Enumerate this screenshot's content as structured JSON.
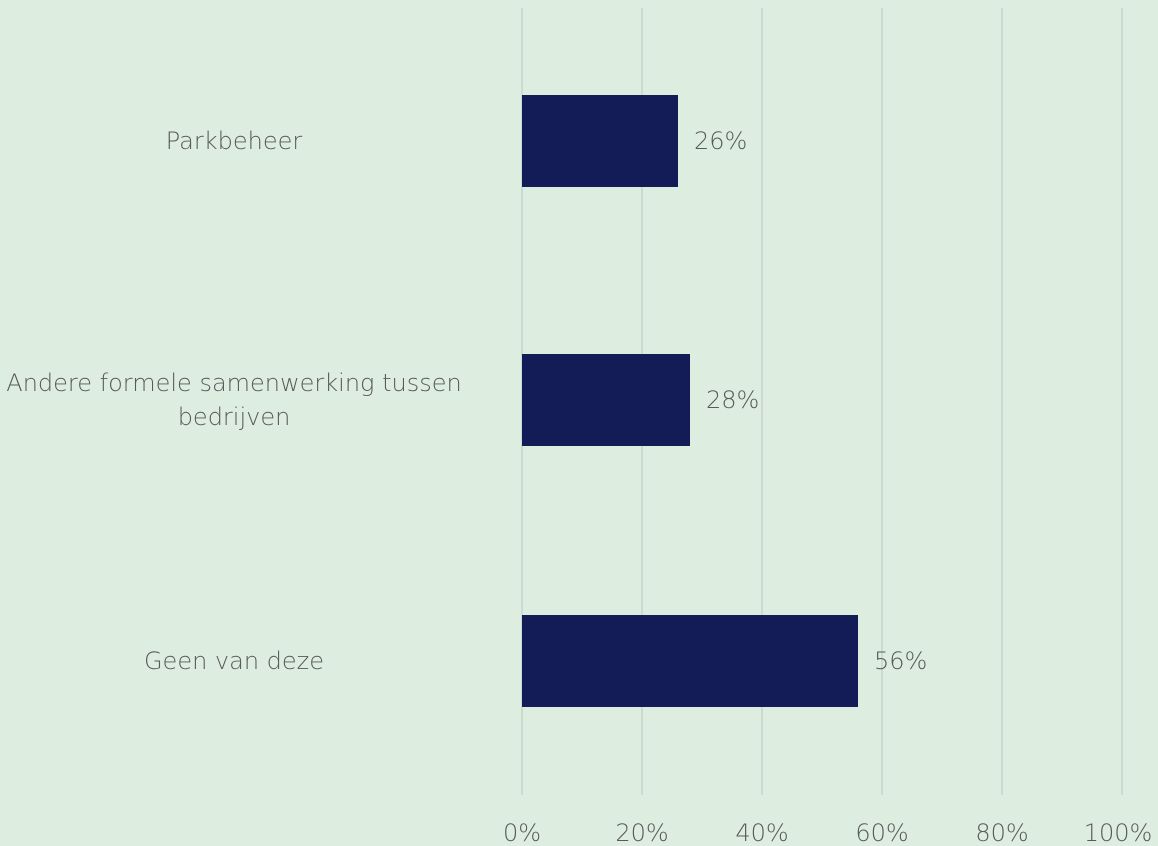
{
  "chart_data": {
    "type": "bar",
    "orientation": "horizontal",
    "title": "",
    "xlabel": "",
    "ylabel": "",
    "categories": [
      "Parkbeheer",
      "Andere formele samenwerking tussen bedrijven",
      "Geen van deze"
    ],
    "category_lines": [
      [
        "Parkbeheer"
      ],
      [
        "Andere formele samenwerking tussen",
        "bedrijven"
      ],
      [
        "Geen van deze"
      ]
    ],
    "values": [
      26,
      28,
      56
    ],
    "value_labels": [
      "26%",
      "28%",
      "56%"
    ],
    "xlim": [
      0,
      100
    ],
    "xticks": [
      0,
      20,
      40,
      60,
      80,
      100
    ],
    "xtick_labels": [
      "0%",
      "20%",
      "40%",
      "60%",
      "80%",
      "100%"
    ],
    "grid": true,
    "legend": "none",
    "colors": {
      "bar": "#131c56",
      "grid": "#c8d3cc",
      "text": "#595959",
      "background": "#ddeee0"
    }
  }
}
